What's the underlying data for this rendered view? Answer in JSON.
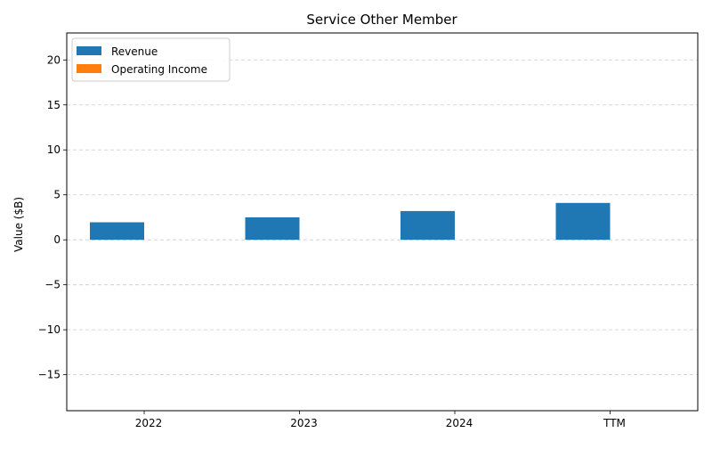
{
  "chart_data": {
    "type": "bar",
    "title": "Service Other Member",
    "xlabel": "",
    "ylabel": "Value ($B)",
    "categories": [
      "2022",
      "2023",
      "2024",
      "TTM"
    ],
    "series": [
      {
        "name": "Revenue",
        "color": "#1f77b4",
        "values": [
          1.95,
          2.5,
          3.2,
          4.1
        ]
      },
      {
        "name": "Operating Income",
        "color": "#ff7f0e",
        "values": [
          0,
          0,
          0,
          0
        ]
      }
    ],
    "ylim": [
      -19,
      23
    ],
    "yticks": [
      -15,
      -10,
      -5,
      0,
      5,
      10,
      15,
      20
    ],
    "ytick_labels": [
      "−15",
      "−10",
      "−5",
      "0",
      "5",
      "10",
      "15",
      "20"
    ],
    "grid": true,
    "legend_position": "top-left"
  }
}
